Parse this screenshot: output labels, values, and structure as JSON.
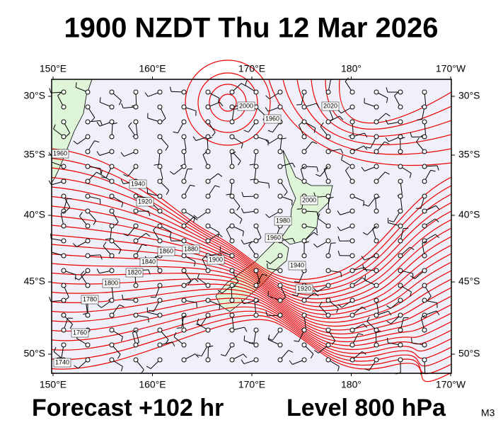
{
  "header": {
    "title": "1900 NZDT Thu 12 Mar 2026"
  },
  "footer": {
    "forecast": "Forecast +102 hr",
    "level": "Level 800 hPa",
    "tag": "M3"
  },
  "map": {
    "lon_labels": [
      "150°E",
      "160°E",
      "170°E",
      "180°",
      "170°W"
    ],
    "lat_labels": [
      "30°S",
      "35°S",
      "40°S",
      "45°S",
      "50°S"
    ],
    "contour_labels": [
      "1960",
      "1940",
      "1920",
      "1880",
      "1860",
      "1840",
      "1820",
      "1800",
      "1780",
      "1760",
      "1740",
      "1900",
      "1980",
      "1960",
      "2000",
      "1940",
      "1920",
      "2000",
      "2020",
      "1960"
    ]
  }
}
